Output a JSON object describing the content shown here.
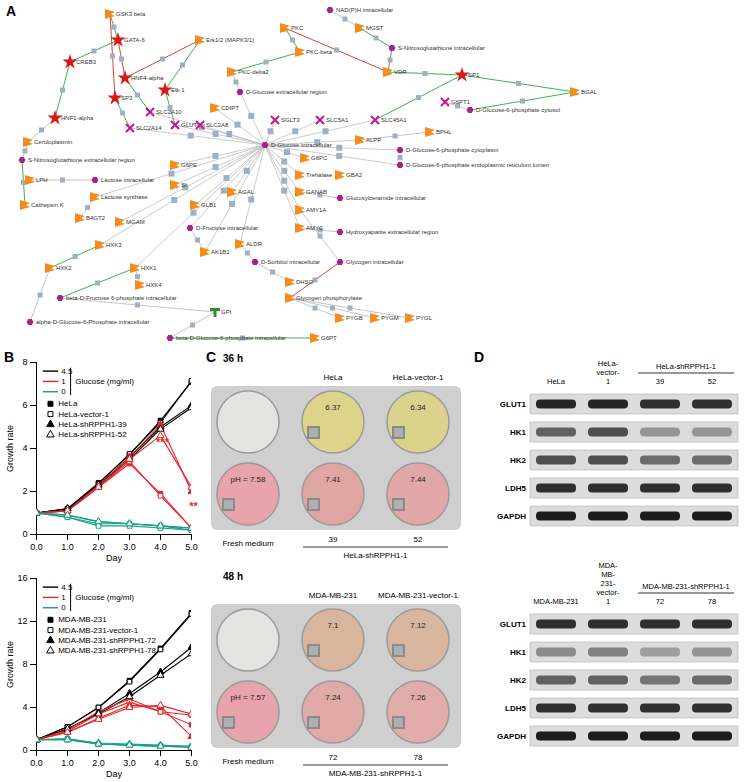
{
  "panels": {
    "A": {
      "label": "A",
      "nodes": [
        "GSK3 beta",
        "GATA-6",
        "CREB3",
        "Erk1/2 (MAPK3/1)",
        "PKC",
        "NAD(P)H intracellular",
        "MGST",
        "PKC-beta",
        "S-Nitrosoglutathione intracellular",
        "VDR",
        "SP1",
        "BGAL",
        "HNF4-alpha",
        "Elk-1",
        "SP3",
        "PKC-delta2",
        "D-Glucose extracellular region",
        "CDIPT",
        "HNF1-alpha",
        "SLC2A10",
        "SLC2A14",
        "GLUT3",
        "SLC2A8",
        "SGLT3",
        "SLC5A1",
        "SLC45A1",
        "G6PT1",
        "D-Glucose intracellular",
        "Ceruloplasmin",
        "S-Nitrosoglutathione extracellular region",
        "LPH",
        "Lactose intracellular",
        "G6PE",
        "Lactose synthase",
        "Cathepsin K",
        "B4GT2",
        "MGAM",
        "SI",
        "GLB1",
        "AGAL",
        "D-Fructose intracellular",
        "ALDR",
        "AK1B1",
        "D-Sorbitol intracellular",
        "DHSO",
        "HXK3",
        "HXK2",
        "HXK1",
        "HXK4",
        "beta-D-Fructose 6-phosphate intracellular",
        "alpha-D-Glucose-6-Phosphate intracellular",
        "GPI",
        "beta-D-Glucose-6-phosphate intracellular",
        "G6PT",
        "Glycogen phosphorylase",
        "Glycogen intracellular",
        "PYGB",
        "PYGM",
        "PYGL",
        "AMY1A",
        "AMYC",
        "Hydroxyapatite extracellular region",
        "GANAB",
        "Glucosylceramide intracellular",
        "Trehalase",
        "GBA2",
        "ALPP",
        "G6PC",
        "D-Glucose-6-phosphate cytosol",
        "D-Glucose-6-phosphate cytoplasm",
        "D-Glucose-6-phosphate endoplasmic reticulum lumen",
        "BPHL"
      ]
    },
    "B": {
      "label": "B"
    },
    "C": {
      "label": "C",
      "plates": [
        {
          "time": "36 h",
          "top_row": [
            {
              "color": "#e4e4e2"
            },
            {
              "label": "HeLa",
              "ph": "6.37",
              "color": "#ddd48a"
            },
            {
              "label": "HeLa-vector-1",
              "ph": "6.34",
              "color": "#dbd28c"
            }
          ],
          "bottom_row": [
            {
              "label": "Fresh medium",
              "ph": "pH = 7.58",
              "color": "#e9a3aa"
            },
            {
              "label": "39",
              "ph": "7.41",
              "color": "#e0a6a4"
            },
            {
              "label": "52",
              "ph": "7.44",
              "color": "#e2a8a8"
            }
          ],
          "bottom_group": "HeLa-shRPPH1-1"
        },
        {
          "time": "48 h",
          "top_row": [
            {
              "color": "#e4e4e2"
            },
            {
              "label": "MDA-MB-231",
              "ph": "7.1",
              "color": "#d8b59c"
            },
            {
              "label": "MDA-MB-231-vector-1",
              "ph": "7.12",
              "color": "#d9b6a0"
            }
          ],
          "bottom_row": [
            {
              "label": "Fresh medium",
              "ph": "pH = 7.57",
              "color": "#e9a3ac"
            },
            {
              "label": "72",
              "ph": "7.24",
              "color": "#e0aaa6"
            },
            {
              "label": "78",
              "ph": "7.26",
              "color": "#e2acaa"
            }
          ],
          "bottom_group": "MDA-MB-231-shRPPH1-1"
        }
      ]
    },
    "D": {
      "label": "D",
      "blots": [
        {
          "lanes": [
            "HeLa",
            "HeLa-vector-1",
            "39",
            "52"
          ],
          "group": "HeLa-shRPPH1-1",
          "rows": [
            {
              "protein": "GLUT1",
              "intensity": [
                0.9,
                0.9,
                0.85,
                0.85
              ]
            },
            {
              "protein": "HK1",
              "intensity": [
                0.6,
                0.7,
                0.35,
                0.35
              ]
            },
            {
              "protein": "HK2",
              "intensity": [
                0.7,
                0.7,
                0.55,
                0.55
              ]
            },
            {
              "protein": "LDH5",
              "intensity": [
                0.85,
                0.85,
                0.85,
                0.85
              ]
            },
            {
              "protein": "GAPDH",
              "intensity": [
                0.95,
                0.95,
                0.95,
                0.95
              ]
            }
          ]
        },
        {
          "lanes": [
            "MDA-MB-231",
            "MDA-MB-231-vector-1",
            "72",
            "78"
          ],
          "group": "MDA-MB-231-shRPPH1-1",
          "rows": [
            {
              "protein": "GLUT1",
              "intensity": [
                0.85,
                0.85,
                0.85,
                0.85
              ]
            },
            {
              "protein": "HK1",
              "intensity": [
                0.4,
                0.45,
                0.3,
                0.35
              ]
            },
            {
              "protein": "HK2",
              "intensity": [
                0.6,
                0.6,
                0.5,
                0.55
              ]
            },
            {
              "protein": "LDH5",
              "intensity": [
                0.85,
                0.85,
                0.85,
                0.85
              ]
            },
            {
              "protein": "GAPDH",
              "intensity": [
                0.95,
                0.95,
                0.95,
                0.95
              ]
            }
          ]
        }
      ]
    }
  },
  "chart_data": [
    {
      "type": "line",
      "x": [
        0,
        1,
        2,
        3,
        4,
        5
      ],
      "xlim": [
        0,
        5
      ],
      "xticks": [
        0,
        1,
        2,
        3,
        4,
        5
      ],
      "ylim": [
        0,
        8
      ],
      "yticks": [
        0,
        2,
        4,
        6,
        8
      ],
      "x_label": "Day",
      "y_label": "Growth rate",
      "grid": false,
      "legend": "upper left",
      "glucose_title": "Glucose (mg/ml)",
      "glucose_levels": [
        {
          "label": "4.5",
          "color": "#000000"
        },
        {
          "label": "1",
          "color": "#e8262b"
        },
        {
          "label": "0",
          "color": "#16a085"
        }
      ],
      "cell_lines": [
        {
          "name": "HeLa",
          "marker": "square"
        },
        {
          "name": "HeLa-vector-1",
          "marker": "square-open"
        },
        {
          "name": "HeLa-shRPPH1-39",
          "marker": "triangle"
        },
        {
          "name": "HeLa-shRPPH1-52",
          "marker": "triangle-open"
        }
      ],
      "series": [
        {
          "name": "HeLa",
          "glucose": "4.5",
          "color": "#000000",
          "marker": "square",
          "values": [
            1,
            1.2,
            2.4,
            3.7,
            5.3,
            7.1
          ]
        },
        {
          "name": "HeLa-vector-1",
          "glucose": "4.5",
          "color": "#000000",
          "marker": "square-open",
          "values": [
            1,
            1.15,
            2.35,
            3.75,
            5.2,
            7.15
          ]
        },
        {
          "name": "HeLa-shRPPH1-39",
          "glucose": "4.5",
          "color": "#000000",
          "marker": "triangle",
          "values": [
            1,
            1.2,
            2.3,
            3.6,
            5.0,
            6.0
          ]
        },
        {
          "name": "HeLa-shRPPH1-52",
          "glucose": "4.5",
          "color": "#000000",
          "marker": "triangle-open",
          "values": [
            1,
            1.2,
            2.3,
            3.5,
            4.9,
            5.9
          ]
        },
        {
          "name": "HeLa",
          "glucose": "1",
          "color": "#e8262b",
          "marker": "square",
          "values": [
            1,
            1.1,
            2.2,
            3.3,
            1.9,
            0.3
          ]
        },
        {
          "name": "HeLa-vector-1",
          "glucose": "1",
          "color": "#e8262b",
          "marker": "square-open",
          "values": [
            1,
            1.1,
            2.2,
            3.4,
            1.8,
            0.3
          ]
        },
        {
          "name": "HeLa-shRPPH1-39",
          "glucose": "1",
          "color": "#e8262b",
          "marker": "triangle",
          "values": [
            1,
            1.1,
            2.3,
            3.6,
            5.1,
            2.0
          ]
        },
        {
          "name": "HeLa-shRPPH1-52",
          "glucose": "1",
          "color": "#e8262b",
          "marker": "triangle-open",
          "values": [
            1,
            1.1,
            2.2,
            3.5,
            4.6,
            2.2
          ]
        },
        {
          "name": "HeLa",
          "glucose": "0",
          "color": "#16a085",
          "marker": "square",
          "values": [
            1,
            0.8,
            0.5,
            0.5,
            0.4,
            0.2
          ]
        },
        {
          "name": "HeLa-vector-1",
          "glucose": "0",
          "color": "#16a085",
          "marker": "square-open",
          "values": [
            1,
            0.8,
            0.4,
            0.4,
            0.3,
            0.2
          ]
        },
        {
          "name": "HeLa-shRPPH1-39",
          "glucose": "0",
          "color": "#16a085",
          "marker": "triangle",
          "values": [
            1,
            0.9,
            0.6,
            0.5,
            0.4,
            0.3
          ]
        },
        {
          "name": "HeLa-shRPPH1-52",
          "glucose": "0",
          "color": "#16a085",
          "marker": "triangle-open",
          "values": [
            1,
            0.9,
            0.6,
            0.5,
            0.4,
            0.3
          ]
        }
      ],
      "annotations": [
        {
          "text": "***",
          "x": 4,
          "y": 4.2,
          "color": "#e8262b"
        },
        {
          "text": "**",
          "x": 5,
          "y": 1.2,
          "color": "#e8262b"
        }
      ]
    },
    {
      "type": "line",
      "x": [
        0,
        1,
        2,
        3,
        4,
        5
      ],
      "xlim": [
        0,
        5
      ],
      "xticks": [
        0,
        1,
        2,
        3,
        4,
        5
      ],
      "ylim": [
        0,
        16
      ],
      "yticks": [
        0,
        4,
        8,
        12,
        16
      ],
      "x_label": "Day",
      "y_label": "Growth rate",
      "grid": false,
      "legend": "upper left",
      "glucose_title": "Glucose (mg/ml)",
      "glucose_levels": [
        {
          "label": "4.5",
          "color": "#000000"
        },
        {
          "label": "1",
          "color": "#e8262b"
        },
        {
          "label": "0",
          "color": "#16a085"
        }
      ],
      "cell_lines": [
        {
          "name": "MDA-MB-231",
          "marker": "square"
        },
        {
          "name": "MDA-MB-231-vector-1",
          "marker": "square-open"
        },
        {
          "name": "MDA-MB-231-shRPPH1-72",
          "marker": "triangle"
        },
        {
          "name": "MDA-MB-231-shRPPH1-78",
          "marker": "triangle-open"
        }
      ],
      "series": [
        {
          "name": "MDA-MB-231",
          "glucose": "4.5",
          "color": "#000000",
          "marker": "square",
          "values": [
            1,
            2.2,
            4.0,
            6.5,
            9.5,
            12.8
          ]
        },
        {
          "name": "MDA-MB-231-vector-1",
          "glucose": "4.5",
          "color": "#000000",
          "marker": "square-open",
          "values": [
            1,
            2.2,
            4.0,
            6.4,
            9.4,
            12.7
          ]
        },
        {
          "name": "MDA-MB-231-shRPPH1-72",
          "glucose": "4.5",
          "color": "#000000",
          "marker": "triangle",
          "values": [
            1,
            2.0,
            3.5,
            5.3,
            7.3,
            9.6
          ]
        },
        {
          "name": "MDA-MB-231-shRPPH1-78",
          "glucose": "4.5",
          "color": "#000000",
          "marker": "triangle-open",
          "values": [
            1,
            2.0,
            3.4,
            5.0,
            7.0,
            9.0
          ]
        },
        {
          "name": "MDA-MB-231",
          "glucose": "1",
          "color": "#e8262b",
          "marker": "square",
          "values": [
            1,
            1.9,
            3.6,
            4.8,
            3.6,
            2.4
          ]
        },
        {
          "name": "MDA-MB-231-vector-1",
          "glucose": "1",
          "color": "#e8262b",
          "marker": "square-open",
          "values": [
            1,
            1.8,
            3.4,
            4.5,
            3.6,
            3.3
          ]
        },
        {
          "name": "MDA-MB-231-shRPPH1-72",
          "glucose": "1",
          "color": "#e8262b",
          "marker": "triangle",
          "values": [
            1,
            1.7,
            3.0,
            4.2,
            4.1,
            1.3
          ]
        },
        {
          "name": "MDA-MB-231-shRPPH1-78",
          "glucose": "1",
          "color": "#e8262b",
          "marker": "triangle-open",
          "values": [
            1,
            1.7,
            2.9,
            4.0,
            4.2,
            3.4
          ]
        },
        {
          "name": "MDA-MB-231",
          "glucose": "0",
          "color": "#16a085",
          "marker": "square",
          "values": [
            1,
            1.1,
            0.6,
            0.5,
            0.4,
            0.3
          ]
        },
        {
          "name": "MDA-MB-231-vector-1",
          "glucose": "0",
          "color": "#16a085",
          "marker": "square-open",
          "values": [
            1,
            1.0,
            0.6,
            0.5,
            0.4,
            0.4
          ]
        },
        {
          "name": "MDA-MB-231-shRPPH1-72",
          "glucose": "0",
          "color": "#16a085",
          "marker": "triangle",
          "values": [
            1,
            1.1,
            0.7,
            0.6,
            0.5,
            0.4
          ]
        },
        {
          "name": "MDA-MB-231-shRPPH1-78",
          "glucose": "0",
          "color": "#16a085",
          "marker": "triangle-open",
          "values": [
            1,
            1.0,
            0.6,
            0.5,
            0.4,
            0.3
          ]
        }
      ]
    }
  ]
}
